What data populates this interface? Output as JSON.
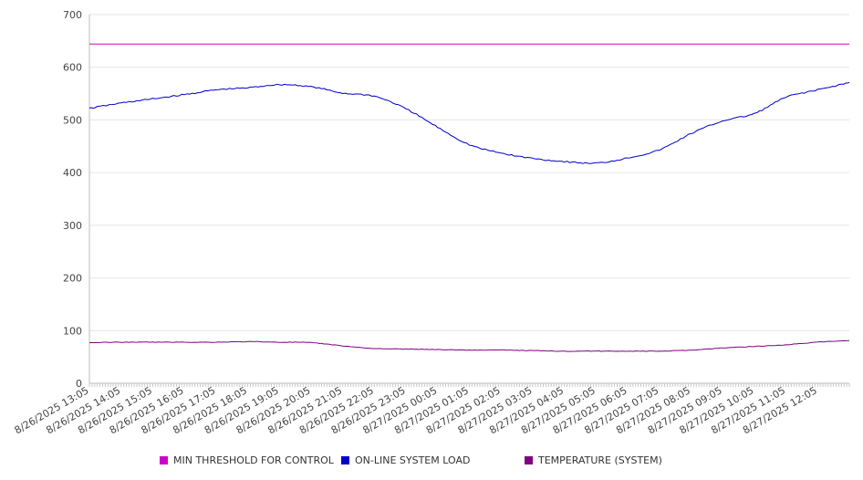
{
  "chart_data": {
    "type": "line",
    "ylim": [
      0,
      700
    ],
    "yticks": [
      0,
      100,
      200,
      300,
      400,
      500,
      600,
      700
    ],
    "grid": true,
    "legend_position": "bottom",
    "x_tick_labels": [
      "8/26/2025 13:05",
      "8/26/2025 14:05",
      "8/26/2025 15:05",
      "8/26/2025 16:05",
      "8/26/2025 17:05",
      "8/26/2025 18:05",
      "8/26/2025 19:05",
      "8/26/2025 20:05",
      "8/26/2025 21:05",
      "8/26/2025 22:05",
      "8/26/2025 23:05",
      "8/27/2025 00:05",
      "8/27/2025 01:05",
      "8/27/2025 02:05",
      "8/27/2025 03:05",
      "8/27/2025 04:05",
      "8/27/2025 05:05",
      "8/27/2025 06:05",
      "8/27/2025 07:05",
      "8/27/2025 08:05",
      "8/27/2025 09:05",
      "8/27/2025 10:05",
      "8/27/2025 11:05",
      "8/27/2025 12:05"
    ],
    "x": [
      "8/26/2025 13:05",
      "8/26/2025 14:05",
      "8/26/2025 15:05",
      "8/26/2025 16:05",
      "8/26/2025 17:05",
      "8/26/2025 18:05",
      "8/26/2025 19:05",
      "8/26/2025 20:05",
      "8/26/2025 21:05",
      "8/26/2025 22:05",
      "8/26/2025 23:05",
      "8/27/2025 00:05",
      "8/27/2025 01:05",
      "8/27/2025 02:05",
      "8/27/2025 03:05",
      "8/27/2025 04:05",
      "8/27/2025 05:05",
      "8/27/2025 06:05",
      "8/27/2025 07:05",
      "8/27/2025 08:05",
      "8/27/2025 09:05",
      "8/27/2025 10:05",
      "8/27/2025 11:05",
      "8/27/2025 12:05",
      "8/27/2025 13:05"
    ],
    "series": [
      {
        "name": "MIN THRESHOLD FOR CONTROL",
        "color": "#cc00cc",
        "values": [
          644,
          644,
          644,
          644,
          644,
          644,
          644,
          644,
          644,
          644,
          644,
          644,
          644,
          644,
          644,
          644,
          644,
          644,
          644,
          644,
          644,
          644,
          644,
          644,
          644
        ]
      },
      {
        "name": "ON-LINE SYSTEM LOAD",
        "color": "#0000cc",
        "values": [
          522,
          532,
          540,
          548,
          557,
          561,
          567,
          563,
          551,
          545,
          521,
          486,
          453,
          437,
          427,
          421,
          418,
          428,
          443,
          474,
          498,
          512,
          543,
          557,
          571
        ]
      },
      {
        "name": "TEMPERATURE (SYSTEM)",
        "color": "#800080",
        "values": [
          77,
          78,
          78,
          78,
          78,
          79,
          78,
          77,
          71,
          66,
          65,
          64,
          63,
          63,
          62,
          61,
          61,
          61,
          61,
          63,
          67,
          70,
          73,
          78,
          81
        ]
      }
    ]
  }
}
